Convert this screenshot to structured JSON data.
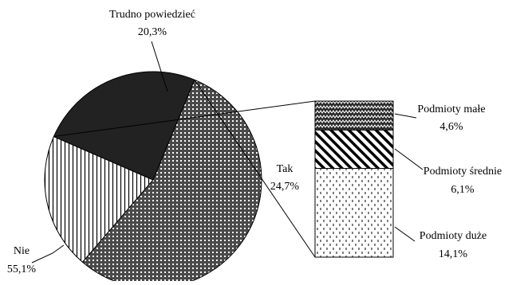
{
  "chart_data": {
    "type": "pie",
    "title": "",
    "pie": {
      "slices": [
        {
          "name": "Trudno powiedzieć",
          "value": 20.3,
          "label": "20,3%",
          "pattern": "vertical-lines"
        },
        {
          "name": "Tak",
          "value": 24.7,
          "label": "24,7%",
          "fill": "#222222"
        },
        {
          "name": "Nie",
          "value": 55.1,
          "label": "55,1%",
          "pattern": "dotted-grid"
        }
      ]
    },
    "breakdown": {
      "of": "Tak",
      "type": "stacked-bar",
      "segments": [
        {
          "name": "Podmioty małe",
          "value": 4.6,
          "label": "4,6%",
          "pattern": "zigzag"
        },
        {
          "name": "Podmioty średnie",
          "value": 6.1,
          "label": "6,1%",
          "pattern": "diagonal-stripes"
        },
        {
          "name": "Podmioty duże",
          "value": 14.1,
          "label": "14,1%",
          "pattern": "dashes"
        }
      ]
    },
    "colors": {
      "outline": "#000000",
      "background": "#ffffff",
      "tak_fill": "#222222"
    }
  }
}
